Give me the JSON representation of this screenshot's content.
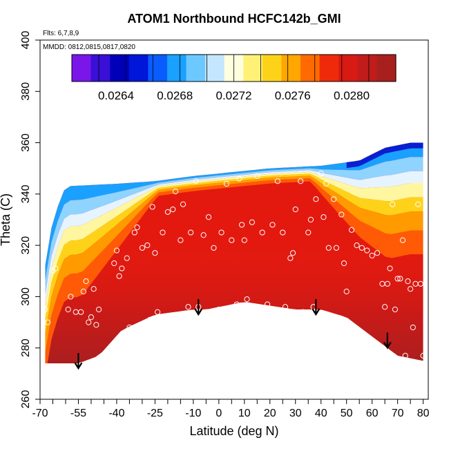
{
  "chart_data": {
    "type": "heatmap",
    "title": "ATOM1 Northbound HCFC142b_GMI",
    "annotations": {
      "flights": "Flts: 6,7,8,9",
      "dates": "MMDD: 0812,0815,0817,0820"
    },
    "xlabel": "Latitude (deg N)",
    "ylabel": "Theta (C)",
    "xlim": [
      -70,
      82
    ],
    "ylim": [
      260,
      400
    ],
    "x_ticks": [
      -70,
      -55,
      -40,
      -25,
      -10,
      0,
      10,
      20,
      30,
      40,
      50,
      60,
      70,
      80
    ],
    "x_minor_ticks": [
      -65,
      -60,
      -50,
      -45,
      -35,
      -30,
      -20,
      -15,
      -5,
      5,
      15,
      25,
      35,
      45,
      55,
      65,
      75
    ],
    "y_ticks": [
      260,
      280,
      300,
      320,
      340,
      360,
      380,
      400
    ],
    "colorbar": {
      "range": [
        0.0261,
        0.0283
      ],
      "tick_values": [
        0.0264,
        0.0268,
        0.0272,
        0.0276,
        0.028
      ],
      "tick_labels": [
        "0.0264",
        "0.0268",
        "0.0272",
        "0.0276",
        "0.0280"
      ],
      "colors": [
        "#7b16ea",
        "#3a0fd6",
        "#0000b8",
        "#0016d8",
        "#0a5cff",
        "#1aa0ff",
        "#6cc8ff",
        "#c4e6ff",
        "#ffffe0",
        "#fff176",
        "#ffd21a",
        "#ffa600",
        "#ff6a00",
        "#ef2a0a",
        "#d81a14",
        "#c01c1c",
        "#a8201e"
      ]
    },
    "field": {
      "lat_range": [
        -68,
        80
      ],
      "theta_bottom": [
        [
          -68,
          274
        ],
        [
          -55,
          274
        ],
        [
          -47,
          277
        ],
        [
          -38,
          287
        ],
        [
          -25,
          293
        ],
        [
          -10,
          295
        ],
        [
          -5,
          295
        ],
        [
          10,
          298
        ],
        [
          30,
          295
        ],
        [
          40,
          295
        ],
        [
          50,
          292
        ],
        [
          70,
          277
        ],
        [
          80,
          275
        ]
      ],
      "theta_top": [
        [
          -68,
          312
        ],
        [
          -65,
          330
        ],
        [
          -60,
          343
        ],
        [
          -40,
          344
        ],
        [
          -25,
          345
        ],
        [
          -10,
          347
        ],
        [
          0,
          348
        ],
        [
          20,
          350
        ],
        [
          40,
          351
        ],
        [
          55,
          353
        ],
        [
          65,
          358
        ],
        [
          75,
          360
        ],
        [
          80,
          360
        ]
      ]
    },
    "observations": [
      [
        -68,
        295
      ],
      [
        -67,
        290
      ],
      [
        -65,
        310
      ],
      [
        -64,
        311
      ],
      [
        -59,
        295
      ],
      [
        -58,
        300
      ],
      [
        -56,
        294
      ],
      [
        -54,
        294
      ],
      [
        -53,
        302
      ],
      [
        -52,
        306
      ],
      [
        -51,
        290
      ],
      [
        -50,
        292
      ],
      [
        -49,
        303
      ],
      [
        -48,
        289
      ],
      [
        -47,
        295
      ],
      [
        -46,
        276
      ],
      [
        -41,
        313
      ],
      [
        -40,
        318
      ],
      [
        -39,
        308
      ],
      [
        -38,
        311
      ],
      [
        -36,
        315
      ],
      [
        -35,
        288
      ],
      [
        -33,
        325
      ],
      [
        -32,
        327
      ],
      [
        -30,
        319
      ],
      [
        -28,
        320
      ],
      [
        -27,
        291
      ],
      [
        -26,
        335
      ],
      [
        -25,
        317
      ],
      [
        -24,
        294
      ],
      [
        -22,
        325
      ],
      [
        -20,
        333
      ],
      [
        -18,
        334
      ],
      [
        -17,
        341
      ],
      [
        -15,
        322
      ],
      [
        -14,
        336
      ],
      [
        -12,
        296
      ],
      [
        -11,
        325
      ],
      [
        -9,
        345
      ],
      [
        -8,
        296
      ],
      [
        -6,
        324
      ],
      [
        -4,
        331
      ],
      [
        -2,
        319
      ],
      [
        0,
        295
      ],
      [
        1,
        325
      ],
      [
        3,
        344
      ],
      [
        5,
        322
      ],
      [
        7,
        297
      ],
      [
        8,
        346
      ],
      [
        9,
        328
      ],
      [
        10,
        322
      ],
      [
        11,
        299
      ],
      [
        13,
        329
      ],
      [
        15,
        347
      ],
      [
        17,
        325
      ],
      [
        19,
        297
      ],
      [
        21,
        328
      ],
      [
        23,
        345
      ],
      [
        25,
        325
      ],
      [
        26,
        296
      ],
      [
        28,
        315
      ],
      [
        29,
        317
      ],
      [
        30,
        334
      ],
      [
        32,
        345
      ],
      [
        33,
        294
      ],
      [
        35,
        325
      ],
      [
        36,
        330
      ],
      [
        37,
        296
      ],
      [
        38,
        338
      ],
      [
        40,
        348
      ],
      [
        41,
        331
      ],
      [
        42,
        344
      ],
      [
        43,
        319
      ],
      [
        45,
        338
      ],
      [
        46,
        319
      ],
      [
        48,
        332
      ],
      [
        49,
        313
      ],
      [
        50,
        302
      ],
      [
        52,
        326
      ],
      [
        54,
        320
      ],
      [
        56,
        319
      ],
      [
        58,
        318
      ],
      [
        60,
        316
      ],
      [
        62,
        317
      ],
      [
        64,
        305
      ],
      [
        65,
        296
      ],
      [
        66,
        305
      ],
      [
        67,
        311
      ],
      [
        68,
        336
      ],
      [
        69,
        295
      ],
      [
        70,
        307
      ],
      [
        71,
        307
      ],
      [
        72,
        322
      ],
      [
        73,
        277
      ],
      [
        74,
        306
      ],
      [
        75,
        303
      ],
      [
        76,
        288
      ],
      [
        77,
        305
      ],
      [
        78,
        336
      ],
      [
        79,
        305
      ],
      [
        80,
        277
      ]
    ],
    "arrows": [
      [
        -55,
        278
      ],
      [
        -8,
        299
      ],
      [
        38,
        299
      ],
      [
        66,
        286
      ]
    ]
  }
}
